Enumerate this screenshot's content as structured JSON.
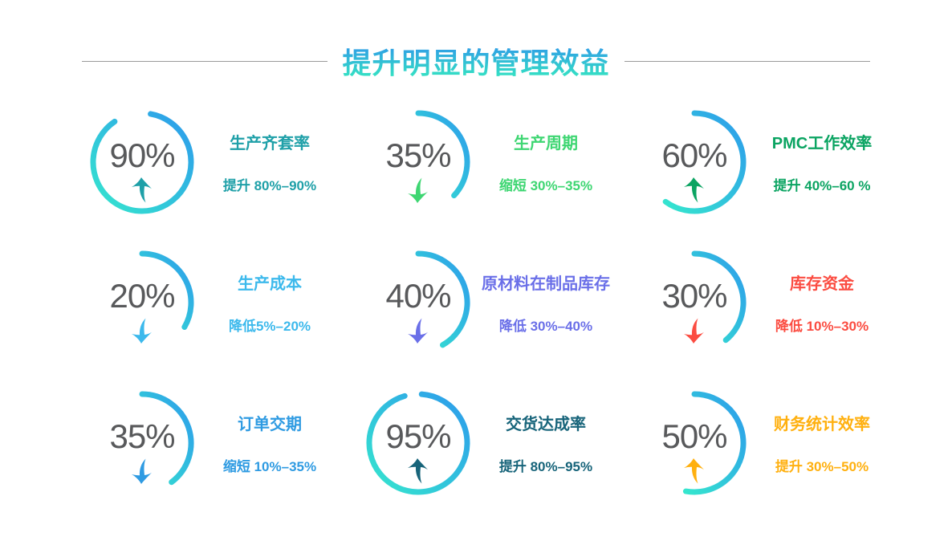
{
  "slide": {
    "title": "提升明显的管理效益",
    "title_gradient": {
      "top": "#2F9AE8",
      "bottom": "#35E8C0"
    },
    "divider_color": "#9B9B9B",
    "background": "#FFFFFF"
  },
  "gauge_style": {
    "arc_gradient_start": "#2D9AEC",
    "arc_gradient_end": "#35E6CE",
    "percent_color": "#58595B"
  },
  "items": [
    {
      "percent": "90%",
      "name": "生产齐套率",
      "desc": "提升 80%–90%",
      "color": "#1FA0A8",
      "direction": "up",
      "arc_start_deg": 10,
      "arc_sweep_deg": 316
    },
    {
      "percent": "35%",
      "name": "生产周期",
      "desc": "缩短 30%–35%",
      "color": "#3ED672",
      "direction": "down",
      "arc_start_deg": 0,
      "arc_sweep_deg": 133
    },
    {
      "percent": "60%",
      "name": "PMC工作效率",
      "desc": "提升 40%–60 %",
      "color": "#0BA462",
      "direction": "up",
      "arc_start_deg": 0,
      "arc_sweep_deg": 216
    },
    {
      "percent": "20%",
      "name": "生产成本",
      "desc": "降低5%–20%",
      "color": "#3CB9EC",
      "direction": "down",
      "arc_start_deg": 0,
      "arc_sweep_deg": 120
    },
    {
      "percent": "40%",
      "name": "原材料在制品库存",
      "desc": "降低 30%–40%",
      "color": "#6A6FE8",
      "direction": "down",
      "arc_start_deg": 0,
      "arc_sweep_deg": 150
    },
    {
      "percent": "30%",
      "name": "库存资金",
      "desc": "降低 10%–30%",
      "color": "#FB4C41",
      "direction": "down",
      "arc_start_deg": 0,
      "arc_sweep_deg": 140
    },
    {
      "percent": "35%",
      "name": "订单交期",
      "desc": "缩短 10%–35%",
      "color": "#2F9BE2",
      "direction": "down",
      "arc_start_deg": 0,
      "arc_sweep_deg": 143
    },
    {
      "percent": "95%",
      "name": "交货达成率",
      "desc": "提升 80%–95%",
      "color": "#17647A",
      "direction": "up",
      "arc_start_deg": 4,
      "arc_sweep_deg": 340
    },
    {
      "percent": "50%",
      "name": "财务统计效率",
      "desc": "提升 30%–50%",
      "color": "#FFB00F",
      "direction": "up",
      "arc_start_deg": 0,
      "arc_sweep_deg": 190
    }
  ],
  "chart_data": {
    "type": "gauge",
    "title": "提升明显的管理效益",
    "categories": [
      "生产齐套率",
      "生产周期",
      "PMC工作效率",
      "生产成本",
      "原材料在制品库存",
      "库存资金",
      "订单交期",
      "交货达成率",
      "财务统计效率"
    ],
    "values": [
      90,
      35,
      60,
      20,
      40,
      30,
      35,
      95,
      50
    ],
    "annotations": [
      "提升 80%–90%",
      "缩短 30%–35%",
      "提升 40%–60 %",
      "降低5%–20%",
      "降低 30%–40%",
      "降低 10%–30%",
      "缩短 10%–35%",
      "提升 80%–95%",
      "提升 30%–50%"
    ],
    "trend_directions": [
      "up",
      "down",
      "up",
      "down",
      "down",
      "down",
      "down",
      "up",
      "up"
    ],
    "value_range": [
      0,
      100
    ],
    "layout": "3x3 grid of partial-ring gauges, percent value and trend arrow inside each ring, labels to the right"
  }
}
